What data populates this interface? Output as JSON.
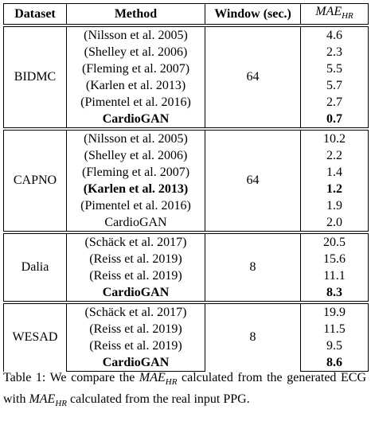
{
  "table": {
    "headers": {
      "dataset": "Dataset",
      "method": "Method",
      "window": "Window (sec.)",
      "mae": "MAE",
      "mae_sub": "HR"
    },
    "groups": [
      {
        "dataset": "BIDMC",
        "window": "64",
        "rows": [
          {
            "method": "(Nilsson et al. 2005)",
            "value": "4.6",
            "bold_method": false,
            "bold_value": false
          },
          {
            "method": "(Shelley et al. 2006)",
            "value": "2.3",
            "bold_method": false,
            "bold_value": false
          },
          {
            "method": "(Fleming et al. 2007)",
            "value": "5.5",
            "bold_method": false,
            "bold_value": false
          },
          {
            "method": "(Karlen et al. 2013)",
            "value": "5.7",
            "bold_method": false,
            "bold_value": false
          },
          {
            "method": "(Pimentel et al. 2016)",
            "value": "2.7",
            "bold_method": false,
            "bold_value": false
          },
          {
            "method": "CardioGAN",
            "value": "0.7",
            "bold_method": true,
            "bold_value": true
          }
        ]
      },
      {
        "dataset": "CAPNO",
        "window": "64",
        "rows": [
          {
            "method": "(Nilsson et al. 2005)",
            "value": "10.2",
            "bold_method": false,
            "bold_value": false
          },
          {
            "method": "(Shelley et al. 2006)",
            "value": "2.2",
            "bold_method": false,
            "bold_value": false
          },
          {
            "method": "(Fleming et al. 2007)",
            "value": "1.4",
            "bold_method": false,
            "bold_value": false
          },
          {
            "method": "(Karlen et al. 2013)",
            "value": "1.2",
            "bold_method": true,
            "bold_value": true
          },
          {
            "method": "(Pimentel et al. 2016)",
            "value": "1.9",
            "bold_method": false,
            "bold_value": false
          },
          {
            "method": "CardioGAN",
            "value": "2.0",
            "bold_method": false,
            "bold_value": false
          }
        ]
      },
      {
        "dataset": "Dalia",
        "window": "8",
        "rows": [
          {
            "method": "(Schäck et al. 2017)",
            "value": "20.5",
            "bold_method": false,
            "bold_value": false
          },
          {
            "method": "(Reiss et al. 2019)",
            "value": "15.6",
            "bold_method": false,
            "bold_value": false
          },
          {
            "method": "(Reiss et al. 2019)",
            "value": "11.1",
            "bold_method": false,
            "bold_value": false
          },
          {
            "method": "CardioGAN",
            "value": "8.3",
            "bold_method": true,
            "bold_value": true
          }
        ]
      },
      {
        "dataset": "WESAD",
        "window": "8",
        "rows": [
          {
            "method": "(Schäck et al. 2017)",
            "value": "19.9",
            "bold_method": false,
            "bold_value": false
          },
          {
            "method": "(Reiss et al. 2019)",
            "value": "11.5",
            "bold_method": false,
            "bold_value": false
          },
          {
            "method": "(Reiss et al. 2019)",
            "value": "9.5",
            "bold_method": false,
            "bold_value": false
          },
          {
            "method": "CardioGAN",
            "value": "8.6",
            "bold_method": true,
            "bold_value": true
          }
        ]
      }
    ]
  },
  "caption": {
    "part1": "Table 1: We compare the ",
    "math1": "MAE",
    "math1_sub": "HR",
    "part2": " calculated from the generated ECG with ",
    "math2": "MAE",
    "math2_sub": "HR",
    "part3": " calculated from the real input PPG."
  }
}
